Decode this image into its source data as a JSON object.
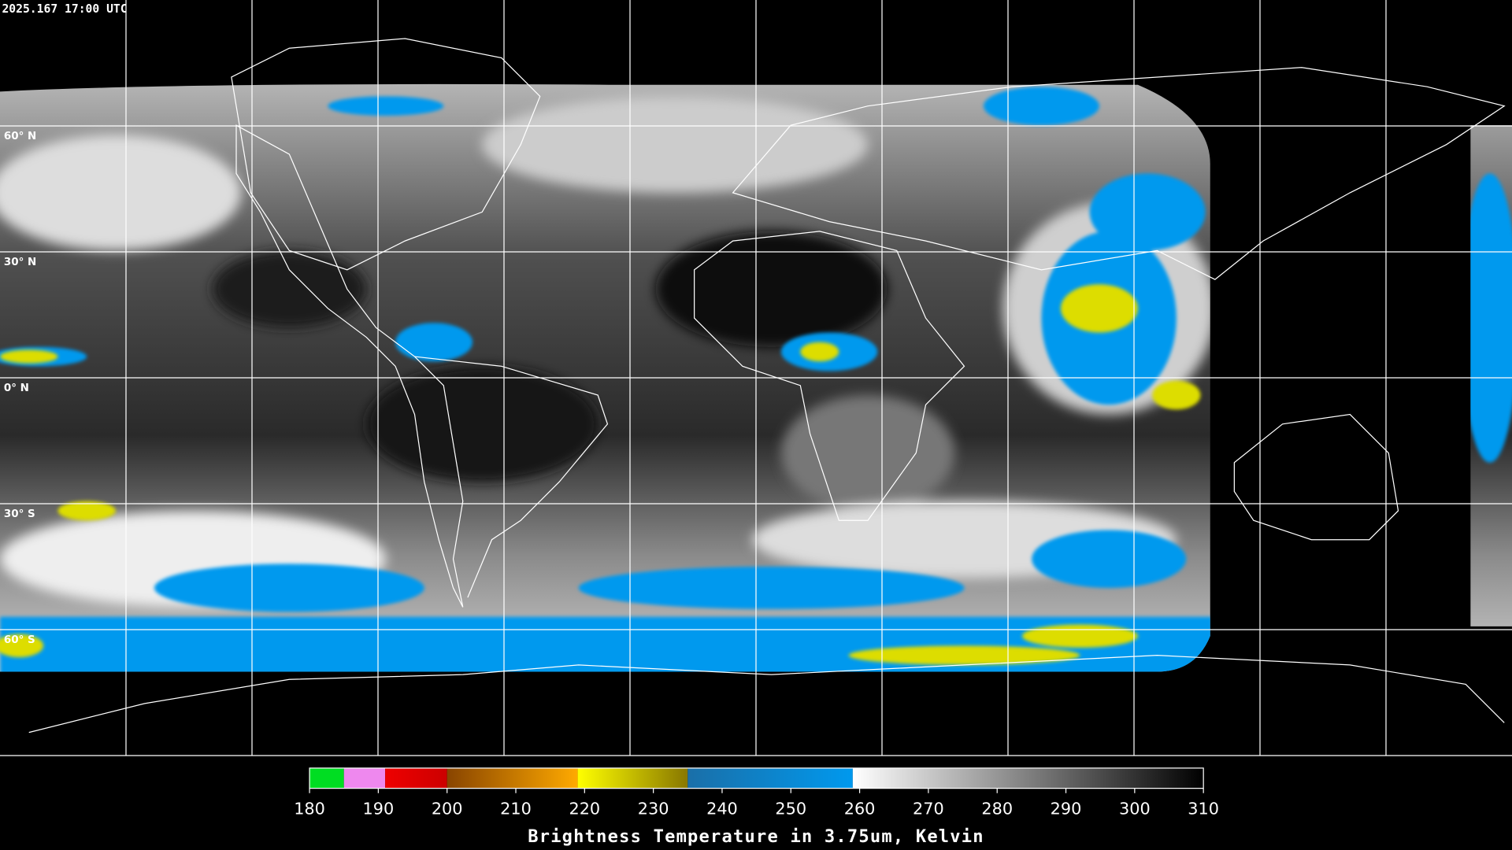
{
  "timestamp": "2025.167 17:00 UTC",
  "latitude_labels": [
    "60° N",
    "30° N",
    "0° N",
    "30° S",
    "60° S"
  ],
  "colorbar": {
    "title": "Brightness Temperature in 3.75um, Kelvin",
    "lim": [
      180,
      310
    ],
    "ticks": [
      180,
      190,
      200,
      210,
      220,
      230,
      240,
      250,
      260,
      270,
      280,
      290,
      300,
      310
    ],
    "segments": [
      {
        "from": 180,
        "to": 185,
        "colors": [
          "#00dd22",
          "#00dd22"
        ]
      },
      {
        "from": 185,
        "to": 191,
        "colors": [
          "#ee88ee",
          "#ee88ee"
        ]
      },
      {
        "from": 191,
        "to": 200,
        "colors": [
          "#ee0000",
          "#cc0000"
        ]
      },
      {
        "from": 200,
        "to": 219,
        "colors": [
          "#884400",
          "#ffaa00"
        ]
      },
      {
        "from": 219,
        "to": 235,
        "colors": [
          "#ffff00",
          "#887700"
        ]
      },
      {
        "from": 235,
        "to": 259,
        "colors": [
          "#1a6fa8",
          "#0099ee"
        ]
      },
      {
        "from": 259,
        "to": 310,
        "colors": [
          "#ffffff",
          "#000000"
        ]
      }
    ]
  }
}
